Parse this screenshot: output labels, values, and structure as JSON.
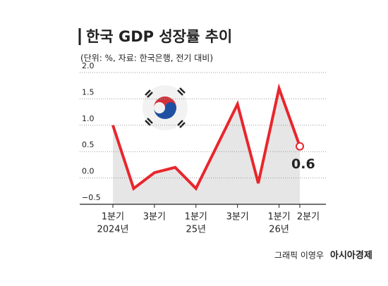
{
  "chart_data": {
    "type": "line",
    "title": "한국 GDP 성장률 추이",
    "subtitle": "(단위: %, 자료: 한국은행, 전기 대비)",
    "categories": [
      "1분기",
      null,
      "3분기",
      null,
      "1분기",
      null,
      "3분기",
      null,
      "1분기",
      "2분기"
    ],
    "category_years": [
      "2024년",
      null,
      null,
      null,
      "25년",
      null,
      null,
      null,
      "26년",
      null
    ],
    "series": [
      {
        "name": "GDP 성장률",
        "color": "#e8262d",
        "values": [
          1.0,
          -0.2,
          0.1,
          0.2,
          -0.2,
          0.6,
          1.4,
          -0.1,
          1.7,
          0.6
        ]
      }
    ],
    "ylim": [
      -0.5,
      2.0
    ],
    "yticks": [
      {
        "value": -0.5,
        "label": "−0.5"
      },
      {
        "value": 0,
        "label": "0.0"
      },
      0.5,
      {
        "value": 1,
        "label": "1.0"
      },
      1.5,
      {
        "value": 2,
        "label": "2.0"
      }
    ],
    "grid": true,
    "credit": "그래픽 이영우",
    "source_logo": "아시아경제"
  }
}
